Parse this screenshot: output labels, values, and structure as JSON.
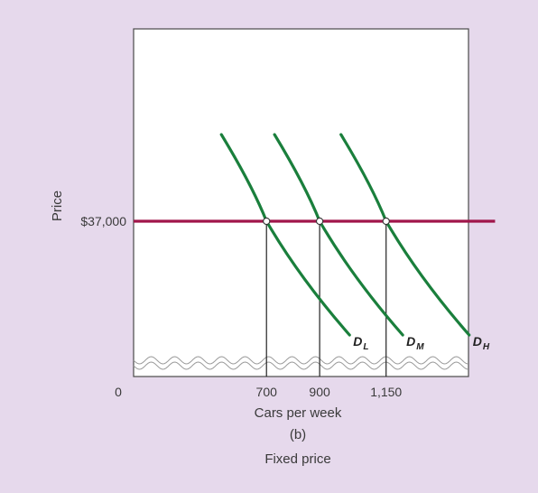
{
  "chart_data": {
    "type": "line",
    "title": "",
    "subtitle": "",
    "panel_label": "(b)",
    "caption": "Fixed price",
    "xlabel": "Cars per week",
    "ylabel": "Price",
    "origin_label": "0",
    "x_ticks": [
      {
        "value": 700,
        "label": "700"
      },
      {
        "value": 900,
        "label": "900"
      },
      {
        "value": 1150,
        "label": "1,150"
      }
    ],
    "y_ticks": [
      {
        "value": 37000,
        "label": "$37,000"
      }
    ],
    "xlim": [
      200,
      1460
    ],
    "axis_break": true,
    "grid": false,
    "price_line": {
      "price": 37000,
      "x_range": [
        200,
        1560
      ],
      "color": "#a0164a"
    },
    "series": [
      {
        "name": "D",
        "subscript": "L",
        "quantity_at_price": 700,
        "color": "#1a7f3c"
      },
      {
        "name": "D",
        "subscript": "M",
        "quantity_at_price": 900,
        "color": "#1a7f3c"
      },
      {
        "name": "D",
        "subscript": "H",
        "quantity_at_price": 1150,
        "color": "#1a7f3c"
      }
    ],
    "points": [
      {
        "x": 700,
        "y": 37000
      },
      {
        "x": 900,
        "y": 37000
      },
      {
        "x": 1150,
        "y": 37000
      }
    ]
  }
}
